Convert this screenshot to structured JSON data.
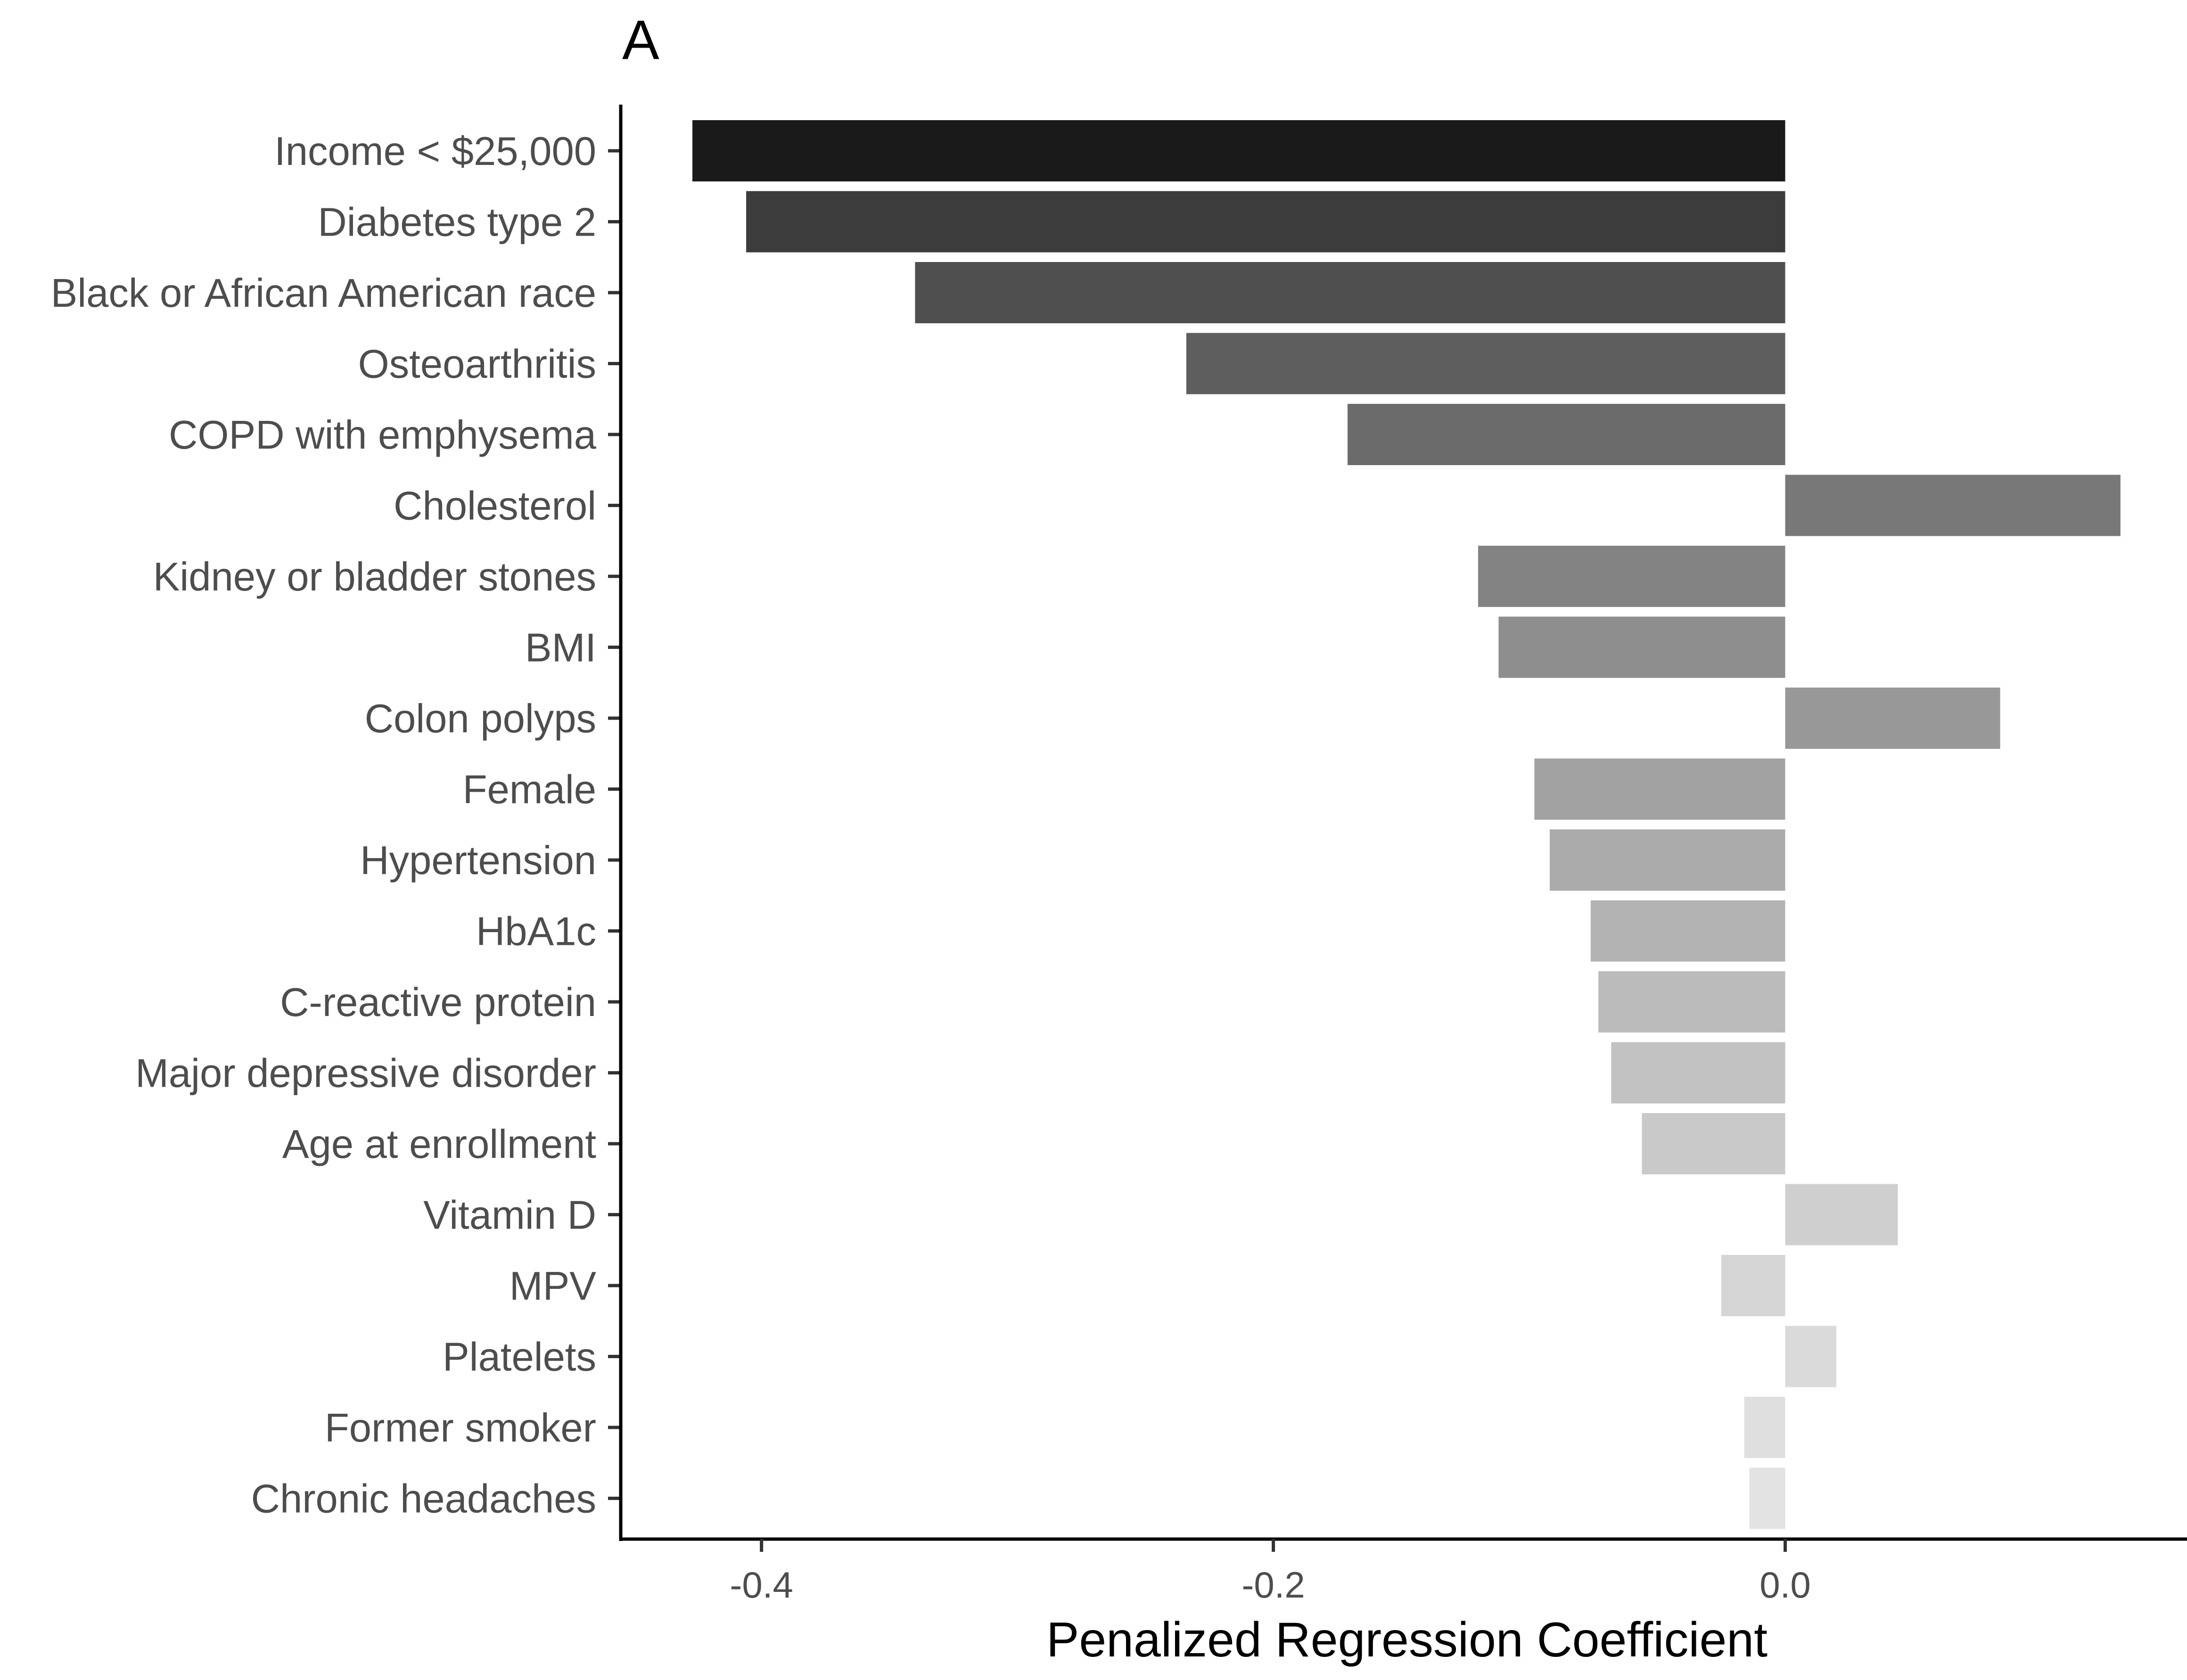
{
  "chart_data": {
    "type": "bar",
    "orientation": "horizontal",
    "panel_label": "A",
    "xlabel": "Penalized Regression Coefficient",
    "ylabel": "",
    "xlim": [
      -0.455,
      0.157
    ],
    "x_ticks": [
      -0.4,
      -0.2,
      0.0
    ],
    "x_tick_labels": [
      "-0.4",
      "-0.2",
      "0.0"
    ],
    "grid": false,
    "legend": "none",
    "categories": [
      "Income < $25,000",
      "Diabetes type 2",
      "Black or African American race",
      "Osteoarthritis",
      "COPD with emphysema",
      "Cholesterol",
      "Kidney or bladder stones",
      "BMI",
      "Colon polyps",
      "Female",
      "Hypertension",
      "HbA1c",
      "C-reactive protein",
      "Major depressive disorder",
      "Age at enrollment",
      "Vitamin D",
      "MPV",
      "Platelets",
      "Former smoker",
      "Chronic headaches"
    ],
    "values": [
      -0.427,
      -0.406,
      -0.34,
      -0.234,
      -0.171,
      0.131,
      -0.12,
      -0.112,
      0.084,
      -0.098,
      -0.092,
      -0.076,
      -0.073,
      -0.068,
      -0.056,
      0.044,
      -0.025,
      0.02,
      -0.016,
      -0.014
    ],
    "colors": [
      "#1a1a1a",
      "#3c3c3c",
      "#4f4f4f",
      "#5e5e5e",
      "#6b6b6b",
      "#787878",
      "#838383",
      "#8e8e8e",
      "#989898",
      "#a2a2a2",
      "#ababab",
      "#b3b3b3",
      "#bbbbbb",
      "#c2c2c2",
      "#c9c9c9",
      "#cfcfcf",
      "#d5d5d5",
      "#dadada",
      "#dfdfdf",
      "#e3e3e3"
    ]
  }
}
